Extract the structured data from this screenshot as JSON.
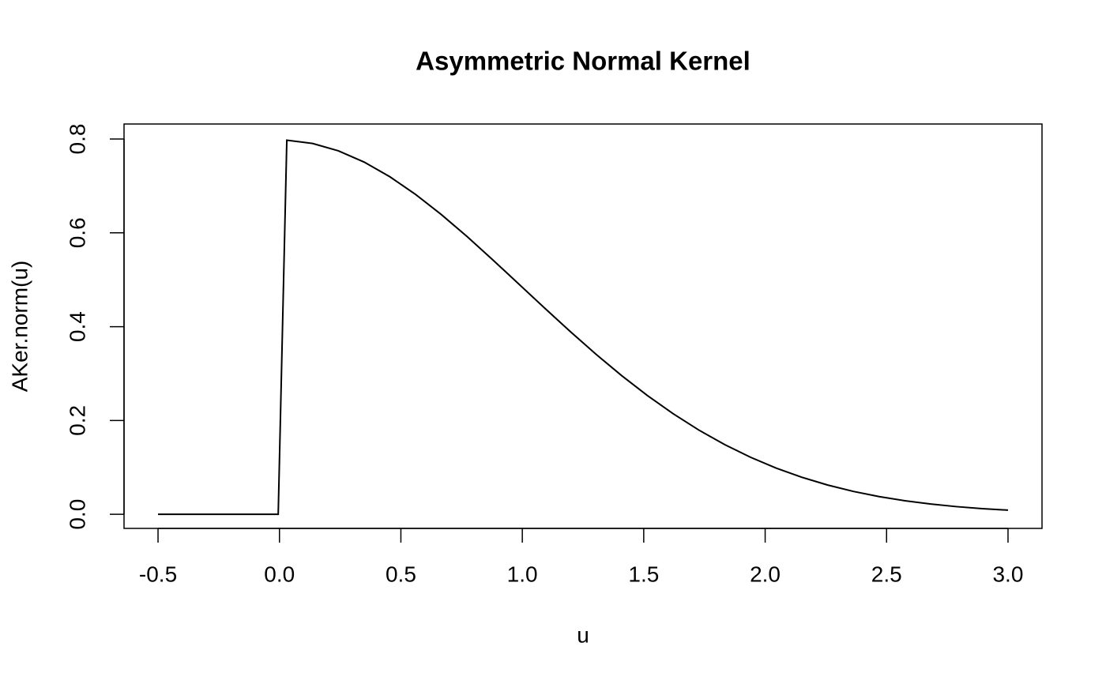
{
  "chart_data": {
    "type": "line",
    "title": "Asymmetric Normal Kernel",
    "x_label": "u",
    "y_label": "AKer.norm(u)",
    "x": [
      -0.5,
      -0.0051,
      0.0303,
      0.1364,
      0.2424,
      0.3485,
      0.4545,
      0.5606,
      0.6667,
      0.7727,
      0.8788,
      0.9848,
      1.0909,
      1.197,
      1.303,
      1.4091,
      1.5152,
      1.6212,
      1.7273,
      1.8333,
      1.9394,
      2.0455,
      2.1515,
      2.2576,
      2.3636,
      2.4697,
      2.5758,
      2.6818,
      2.7879,
      2.8939,
      3.0
    ],
    "series": [
      {
        "color": "#000000",
        "values": [
          0,
          0,
          0.7975,
          0.7905,
          0.7748,
          0.7509,
          0.7196,
          0.6819,
          0.6389,
          0.592,
          0.5423,
          0.4913,
          0.4401,
          0.3898,
          0.3414,
          0.2957,
          0.2532,
          0.2144,
          0.1795,
          0.1486,
          0.1217,
          0.0985,
          0.0789,
          0.0624,
          0.0488,
          0.0378,
          0.0289,
          0.0219,
          0.0164,
          0.0121,
          0.0089
        ]
      }
    ],
    "xlim": [
      -0.64,
      3.14
    ],
    "ylim": [
      -0.03,
      0.832
    ],
    "xticks": [
      -0.5,
      {
        "value": 0,
        "label": "0.0"
      },
      0.5,
      {
        "value": 1,
        "label": "1.0"
      },
      1.5,
      {
        "value": 2,
        "label": "2.0"
      },
      2.5,
      {
        "value": 3,
        "label": "3.0"
      }
    ],
    "yticks": [
      {
        "value": 0,
        "label": "0.0"
      },
      0.2,
      0.4,
      0.6,
      0.8
    ]
  }
}
